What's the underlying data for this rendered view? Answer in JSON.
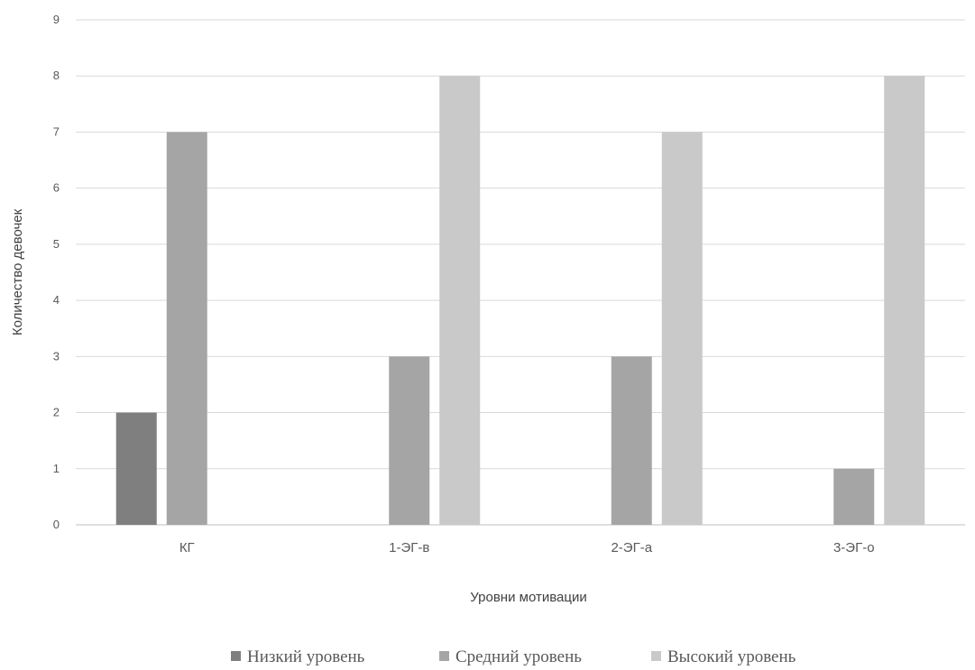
{
  "chart_data": {
    "type": "bar",
    "title": "",
    "xlabel": "Уровни мотивации",
    "ylabel": "Количество девочек",
    "categories": [
      "КГ",
      "1-ЭГ-в",
      "2-ЭГ-а",
      "3-ЭГ-о"
    ],
    "series": [
      {
        "name": "Низкий уровень",
        "color": "#7f7f7f",
        "values": [
          2,
          0,
          0,
          0
        ]
      },
      {
        "name": "Средний уровень",
        "color": "#a5a5a5",
        "values": [
          7,
          3,
          3,
          1
        ]
      },
      {
        "name": "Высокий уровень",
        "color": "#c9c9c9",
        "values": [
          0,
          8,
          7,
          8
        ]
      }
    ],
    "ylim": [
      0,
      9
    ],
    "yticks": [
      "0",
      "1",
      "2",
      "3",
      "4",
      "5",
      "6",
      "7",
      "8",
      "9"
    ],
    "grid": true,
    "legend": "bottom"
  }
}
